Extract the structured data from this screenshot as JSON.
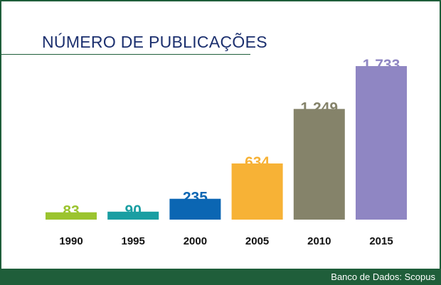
{
  "chart_data": {
    "type": "bar",
    "title": "NÚMERO DE PUBLICAÇÕES",
    "categories": [
      "1990",
      "1995",
      "2000",
      "2005",
      "2010",
      "2015"
    ],
    "values": [
      83,
      90,
      235,
      634,
      1249,
      1733
    ],
    "value_labels": [
      "83",
      "90",
      "235",
      "634",
      "1.249",
      "1.733"
    ],
    "colors": [
      "#9bc42f",
      "#1a9ea2",
      "#0b66b3",
      "#f7b236",
      "#85836a",
      "#8f86c3"
    ],
    "ylim": [
      0,
      1733
    ],
    "grid": false,
    "legend": "none"
  },
  "footer": {
    "source": "Banco de Dados: Scopus"
  },
  "colors": {
    "frame": "#1f5e3a",
    "title": "#1b2f6e"
  }
}
